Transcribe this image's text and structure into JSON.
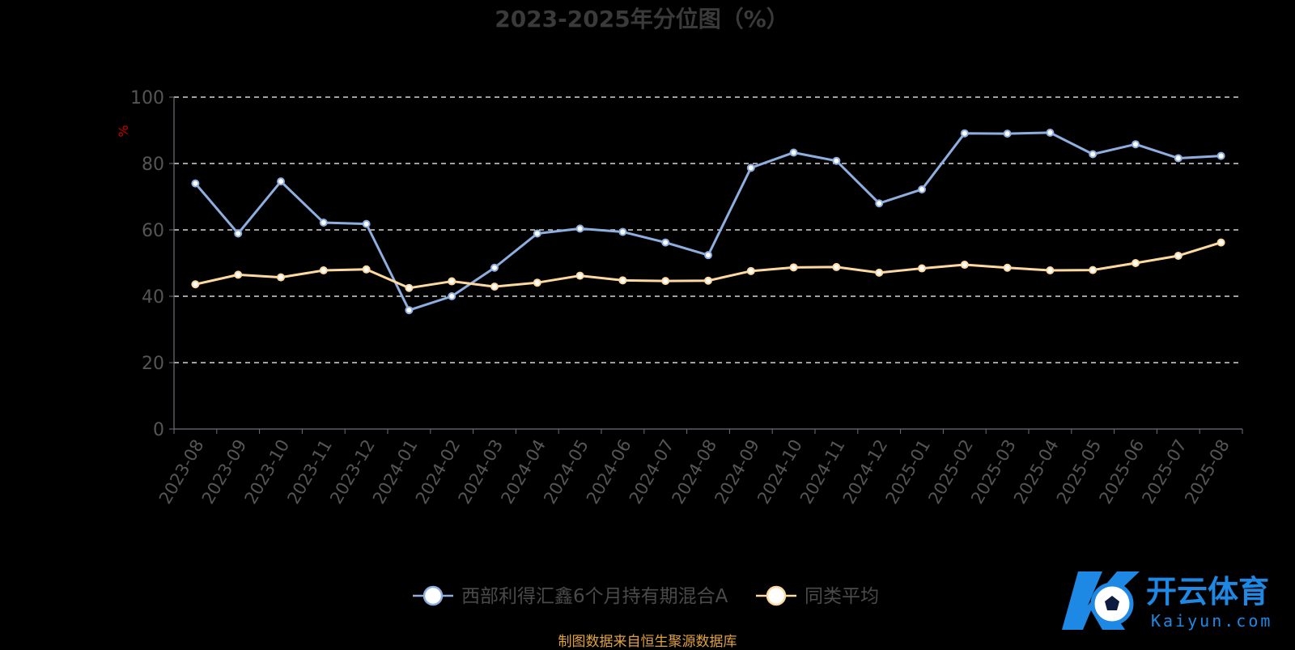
{
  "chart_data": {
    "type": "line",
    "title": "2023-2025年分位图（%）",
    "ylabel": "%",
    "ylim": [
      0,
      100
    ],
    "yticks": [
      0,
      20,
      40,
      60,
      80,
      100
    ],
    "grid": true,
    "legend_position": "bottom-center",
    "categories": [
      "2023-08",
      "2023-09",
      "2023-10",
      "2023-11",
      "2023-12",
      "2024-01",
      "2024-02",
      "2024-03",
      "2024-04",
      "2024-05",
      "2024-06",
      "2024-07",
      "2024-08",
      "2024-09",
      "2024-10",
      "2024-11",
      "2024-12",
      "2025-01",
      "2025-02",
      "2025-03",
      "2025-04",
      "2025-05",
      "2025-06",
      "2025-07",
      "2025-08"
    ],
    "series": [
      {
        "name": "西部利得汇鑫6个月持有期混合A",
        "color": "#8eaee0",
        "values": [
          74.0,
          58.9,
          74.6,
          62.2,
          61.8,
          35.8,
          40.0,
          48.6,
          58.9,
          60.4,
          59.4,
          56.2,
          52.4,
          78.7,
          83.3,
          80.8,
          68.0,
          72.2,
          89.1,
          89.0,
          89.3,
          82.8,
          85.8,
          81.6,
          82.3
        ]
      },
      {
        "name": "同类平均",
        "color": "#fdd9a0",
        "values": [
          43.6,
          46.5,
          45.7,
          47.8,
          48.1,
          42.5,
          44.5,
          42.9,
          44.1,
          46.2,
          44.8,
          44.6,
          44.7,
          47.6,
          48.7,
          48.8,
          47.1,
          48.4,
          49.5,
          48.6,
          47.8,
          47.9,
          50.0,
          52.2,
          56.2
        ]
      }
    ]
  },
  "source_text": "制图数据来自恒生聚源数据库",
  "logo": {
    "cn_text": "开云体育",
    "en_text": "Kaiyun.com"
  },
  "colors": {
    "background": "#000000",
    "grid": "#ffffff",
    "axis": "#6e7079",
    "tick_text": "#555555",
    "ylabel": "#cc0000",
    "source": "#e0a23a",
    "logo": "#1e88e5"
  }
}
